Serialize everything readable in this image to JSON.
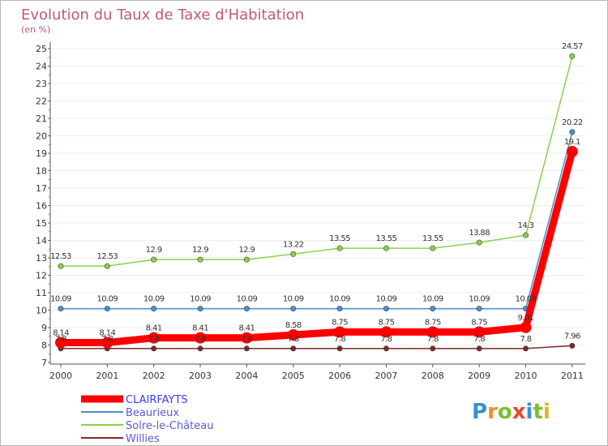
{
  "chart_data": {
    "type": "line",
    "title": "Evolution du Taux de Taxe d'Habitation",
    "subtitle": "(en %)",
    "xlabel": "",
    "ylabel": "",
    "ylim": [
      7,
      25
    ],
    "y_ticks": [
      "7",
      "8",
      "9",
      "10",
      "11",
      "12",
      "13",
      "14",
      "15",
      "16",
      "17",
      "18",
      "19",
      "20",
      "21",
      "22",
      "23",
      "24",
      "25"
    ],
    "categories": [
      "2000",
      "2001",
      "2002",
      "2003",
      "2004",
      "2005",
      "2006",
      "2007",
      "2008",
      "2009",
      "2010",
      "2011"
    ],
    "legend_position": "bottom-left",
    "series": [
      {
        "name": "CLAIRFAYTS",
        "color": "#ff0000",
        "bold": true,
        "values": [
          8.14,
          8.14,
          8.41,
          8.41,
          8.41,
          8.58,
          8.75,
          8.75,
          8.75,
          8.75,
          9.01,
          19.1
        ],
        "labels": [
          "8.14",
          "8.14",
          "8.41",
          "8.41",
          "8.41",
          "8.58",
          "8.75",
          "8.75",
          "8.75",
          "8.75",
          "9.01",
          "19.1"
        ]
      },
      {
        "name": "Beaurieux",
        "color": "#4a90c9",
        "values": [
          10.09,
          10.09,
          10.09,
          10.09,
          10.09,
          10.09,
          10.09,
          10.09,
          10.09,
          10.09,
          10.09,
          20.22
        ],
        "labels": [
          "10.09",
          "10.09",
          "10.09",
          "10.09",
          "10.09",
          "10.09",
          "10.09",
          "10.09",
          "10.09",
          "10.09",
          "10.09",
          "20.22"
        ]
      },
      {
        "name": "Solre-le-Château",
        "color": "#8ad14a",
        "values": [
          12.53,
          12.53,
          12.9,
          12.9,
          12.9,
          13.22,
          13.55,
          13.55,
          13.55,
          13.88,
          14.3,
          24.57
        ],
        "labels": [
          "12.53",
          "12.53",
          "12.9",
          "12.9",
          "12.9",
          "13.22",
          "13.55",
          "13.55",
          "13.55",
          "13.88",
          "14.3",
          "24.57"
        ]
      },
      {
        "name": "Willies",
        "color": "#7a2a2a",
        "values": [
          7.8,
          7.8,
          7.8,
          7.8,
          7.8,
          7.8,
          7.8,
          7.8,
          7.8,
          7.8,
          7.8,
          7.96
        ],
        "labels": [
          "7.8",
          "7.8",
          "7.8",
          "7.8",
          "7.8",
          "7.8",
          "7.8",
          "7.8",
          "7.8",
          "7.8",
          "7.8",
          "7.96"
        ]
      }
    ]
  },
  "brand": {
    "logo_letters": [
      "P",
      "r",
      "o",
      "x",
      "i",
      "t",
      "i"
    ],
    "logo_colors": [
      "#3a8fd0",
      "#f28c28",
      "#7bbf2a",
      "#e8462b",
      "#3a8fd0",
      "#7bbf2a",
      "#e8b020"
    ]
  }
}
